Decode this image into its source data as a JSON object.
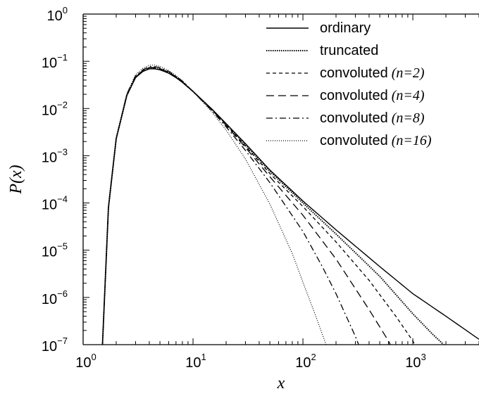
{
  "chart_data": {
    "type": "line",
    "title": "",
    "xlabel": "x",
    "ylabel": "P(x)",
    "xscale": "log",
    "yscale": "log",
    "xlim": [
      1,
      4000
    ],
    "ylim": [
      1e-07,
      1
    ],
    "x_ticks": [
      {
        "value": 1,
        "base": "10",
        "exp": "0"
      },
      {
        "value": 10,
        "base": "10",
        "exp": "1"
      },
      {
        "value": 100,
        "base": "10",
        "exp": "2"
      },
      {
        "value": 1000,
        "base": "10",
        "exp": "3"
      }
    ],
    "y_ticks": [
      {
        "value": 1,
        "base": "10",
        "exp": "0"
      },
      {
        "value": 0.1,
        "base": "10",
        "exp": "−1"
      },
      {
        "value": 0.01,
        "base": "10",
        "exp": "−2"
      },
      {
        "value": 0.001,
        "base": "10",
        "exp": "−3"
      },
      {
        "value": 0.0001,
        "base": "10",
        "exp": "−4"
      },
      {
        "value": 1e-05,
        "base": "10",
        "exp": "−5"
      },
      {
        "value": 1e-06,
        "base": "10",
        "exp": "−6"
      },
      {
        "value": 1e-07,
        "base": "10",
        "exp": "−7"
      }
    ],
    "grid": false,
    "legend_position": "top-right",
    "series": [
      {
        "name": "ordinary",
        "n_label": "",
        "style": "solid",
        "x": [
          1.5,
          1.7,
          2,
          2.5,
          3,
          3.5,
          4,
          4.5,
          5,
          6,
          7,
          8,
          10,
          15,
          20,
          30,
          50,
          100,
          200,
          500,
          1000,
          2000,
          4000
        ],
        "y": [
          1e-07,
          8e-05,
          0.0023,
          0.019,
          0.045,
          0.061,
          0.069,
          0.069,
          0.066,
          0.056,
          0.045,
          0.036,
          0.023,
          0.0095,
          0.0048,
          0.0018,
          0.0005,
          0.00011,
          2.7e-05,
          4.5e-06,
          1.2e-06,
          4e-07,
          1.3e-07
        ]
      },
      {
        "name": "truncated",
        "n_label": "",
        "style": "dense-dotted",
        "x": [
          1.5,
          1.7,
          2,
          2.5,
          3,
          3.5,
          4,
          4.5,
          5,
          6,
          7,
          8,
          10,
          15,
          20,
          30,
          50,
          100,
          200,
          500,
          1000,
          1500,
          2000,
          2200
        ],
        "y": [
          1e-07,
          8e-05,
          0.0023,
          0.019,
          0.046,
          0.062,
          0.071,
          0.071,
          0.068,
          0.057,
          0.046,
          0.036,
          0.023,
          0.0094,
          0.0047,
          0.0017,
          0.00047,
          0.0001,
          2.2e-05,
          2.8e-06,
          4.5e-07,
          1.7e-07,
          9e-08,
          6e-08
        ]
      },
      {
        "name": "convoluted",
        "n_label": "(n=2)",
        "style": "short-dash",
        "x": [
          1.5,
          1.7,
          2,
          2.5,
          3,
          3.5,
          4,
          4.5,
          5,
          6,
          7,
          8,
          10,
          15,
          20,
          30,
          50,
          100,
          200,
          400,
          700,
          1000,
          1200
        ],
        "y": [
          1e-07,
          8e-05,
          0.0023,
          0.019,
          0.046,
          0.063,
          0.072,
          0.072,
          0.069,
          0.058,
          0.046,
          0.036,
          0.023,
          0.0093,
          0.0046,
          0.0016,
          0.00042,
          8.4e-05,
          1.5e-05,
          2.3e-06,
          4e-07,
          1.2e-07,
          5e-08
        ]
      },
      {
        "name": "convoluted",
        "n_label": "(n=4)",
        "style": "long-dash",
        "x": [
          1.5,
          1.7,
          2,
          2.5,
          3,
          3.5,
          4,
          4.5,
          5,
          6,
          7,
          8,
          10,
          15,
          20,
          30,
          50,
          100,
          200,
          400,
          600,
          700
        ],
        "y": [
          1e-07,
          8e-05,
          0.0023,
          0.019,
          0.047,
          0.064,
          0.074,
          0.074,
          0.07,
          0.059,
          0.047,
          0.037,
          0.023,
          0.0091,
          0.0044,
          0.0015,
          0.00036,
          5.5e-05,
          6.5e-06,
          5.5e-07,
          1.2e-07,
          6e-08
        ]
      },
      {
        "name": "convoluted",
        "n_label": "(n=8)",
        "style": "dash-dot",
        "x": [
          1.5,
          1.7,
          2,
          2.5,
          3,
          3.5,
          4,
          4.5,
          5,
          6,
          7,
          8,
          10,
          15,
          20,
          30,
          50,
          100,
          150,
          200,
          300,
          350
        ],
        "y": [
          1e-07,
          8e-05,
          0.0023,
          0.02,
          0.049,
          0.066,
          0.077,
          0.077,
          0.073,
          0.061,
          0.048,
          0.038,
          0.023,
          0.0088,
          0.0041,
          0.0013,
          0.00027,
          2.5e-05,
          4.5e-06,
          1.2e-06,
          1.5e-07,
          6e-08
        ]
      },
      {
        "name": "convoluted",
        "n_label": "(n=16)",
        "style": "fine-dotted",
        "x": [
          1.5,
          1.7,
          2,
          2.5,
          3,
          3.5,
          4,
          4.5,
          5,
          6,
          7,
          8,
          10,
          15,
          20,
          30,
          50,
          80,
          100,
          130,
          160,
          180
        ],
        "y": [
          1e-07,
          9e-05,
          0.0025,
          0.021,
          0.052,
          0.071,
          0.083,
          0.083,
          0.078,
          0.064,
          0.05,
          0.039,
          0.023,
          0.0082,
          0.0035,
          0.00085,
          9.5e-05,
          8.5e-06,
          2.1e-06,
          4.2e-07,
          1.1e-07,
          5e-08
        ]
      }
    ]
  }
}
